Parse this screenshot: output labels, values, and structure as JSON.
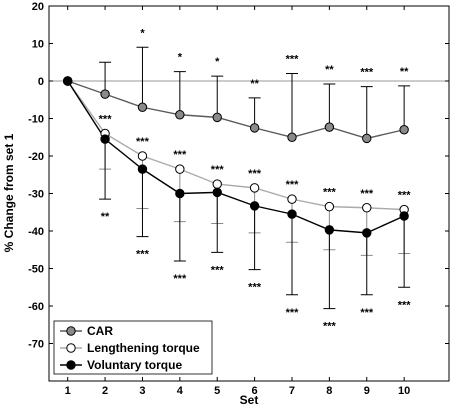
{
  "chart_data": {
    "type": "line",
    "xlabel": "Set",
    "ylabel": "% Change from set 1",
    "xlim": [
      0.5,
      11.2
    ],
    "ylim": [
      -80,
      20
    ],
    "x": [
      1,
      2,
      3,
      4,
      5,
      6,
      7,
      8,
      9,
      10
    ],
    "xticks": [
      "1",
      "2",
      "3",
      "4",
      "5",
      "6",
      "7",
      "8",
      "9",
      "10"
    ],
    "yticks": [
      20,
      10,
      0,
      -10,
      -20,
      -30,
      -40,
      -50,
      -60,
      -70
    ],
    "zero_line": true,
    "legend_position": "bottom-left",
    "series": [
      {
        "name": "CAR",
        "marker_fill": "#8a8a8a",
        "line_color": "#5a5a5a",
        "values": [
          0,
          -3.5,
          -7,
          -9,
          -9.7,
          -12.5,
          -15,
          -12.3,
          -15.3,
          -13
        ],
        "error_plus": [
          0,
          8.5,
          16,
          11.5,
          11,
          8,
          17,
          11.5,
          13.8,
          11.7
        ],
        "error_minus": [
          0,
          0,
          0,
          0,
          0,
          0,
          0,
          0,
          0,
          0
        ],
        "error_direction": "up",
        "significance": [
          "",
          "",
          "*",
          "*",
          "*",
          "**",
          "***",
          "**",
          "***",
          "**"
        ]
      },
      {
        "name": "Lengthening torque",
        "marker_fill": "#ffffff",
        "line_color": "#aaaaaa",
        "values": [
          0,
          -14,
          -20,
          -23.5,
          -27.5,
          -28.5,
          -31.5,
          -33.5,
          -33.8,
          -34.3
        ],
        "error_plus": [
          0,
          0,
          0,
          0,
          0,
          0,
          0,
          0,
          0,
          0
        ],
        "error_minus": [
          0,
          9.5,
          14,
          14,
          10.5,
          12,
          11.5,
          11.5,
          12.7,
          11.7
        ],
        "error_direction": "down",
        "significance": [
          "",
          "***",
          "***",
          "***",
          "***",
          "***",
          "***",
          "***",
          "***",
          "***"
        ]
      },
      {
        "name": "Voluntary torque",
        "marker_fill": "#000000",
        "line_color": "#000000",
        "values": [
          0,
          -15.5,
          -23.5,
          -30,
          -29.7,
          -33.3,
          -35.5,
          -39.7,
          -40.5,
          -36
        ],
        "error_plus": [
          0,
          0,
          0,
          0,
          0,
          0,
          0,
          0,
          0,
          0
        ],
        "error_minus": [
          0,
          16,
          18,
          18,
          16,
          17,
          21.5,
          21,
          16.5,
          19
        ],
        "error_direction": "down",
        "significance": [
          "",
          "**",
          "***",
          "***",
          "***",
          "***",
          "***",
          "***",
          "***",
          "***"
        ]
      }
    ]
  }
}
